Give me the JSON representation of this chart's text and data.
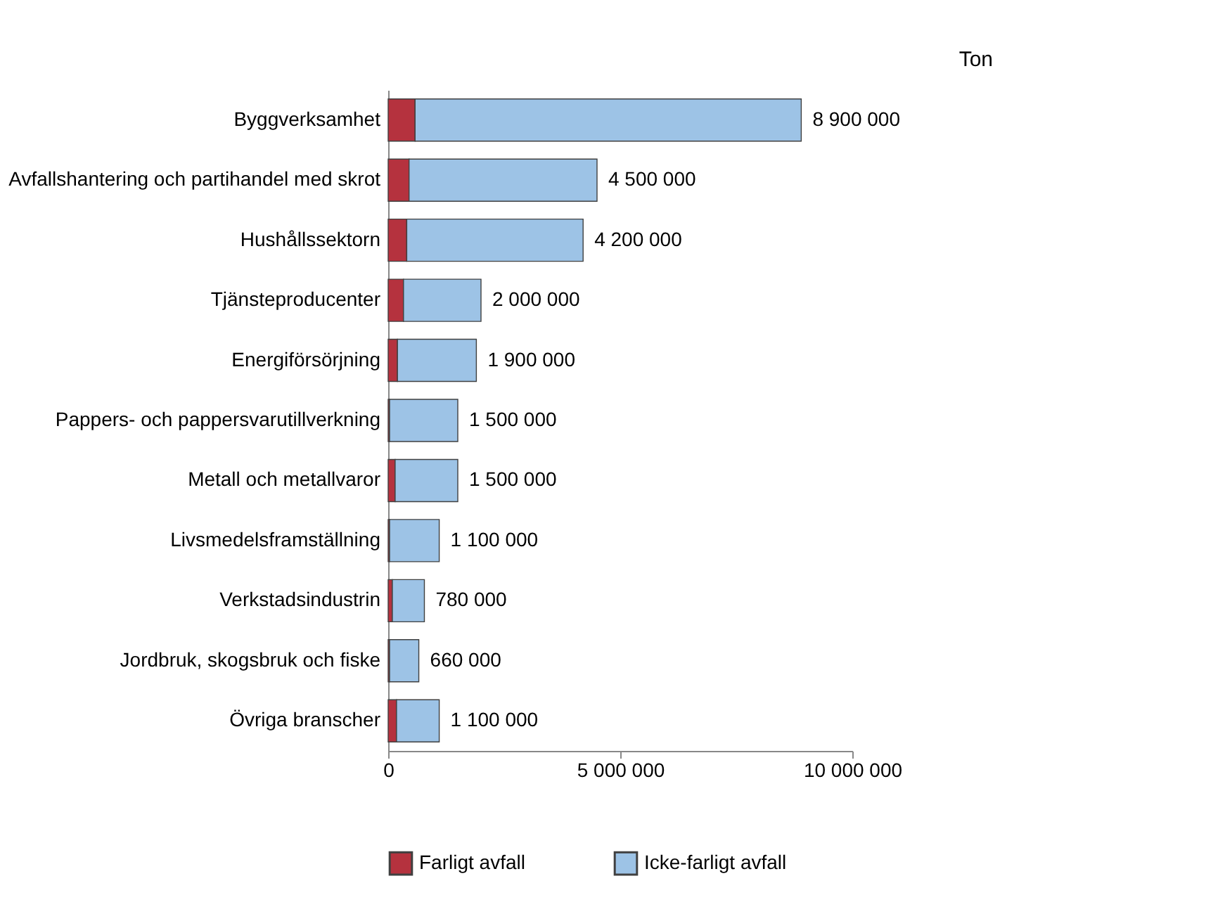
{
  "chart_data": {
    "type": "bar",
    "orientation": "horizontal",
    "stacked": true,
    "categories": [
      "Byggverksamhet",
      "Avfallshantering och partihandel med skrot",
      "Hushållssektorn",
      "Tjänsteproducenter",
      "Energiförsörjning",
      "Pappers- och pappersvarutillverkning",
      "Metall och metallvaror",
      "Livsmedelsframställning",
      "Verkstadsindustrin",
      "Jordbruk, skogsbruk och fiske",
      "Övriga branscher"
    ],
    "series": [
      {
        "name": "Farligt avfall",
        "color": "#b5323e",
        "values": [
          580000,
          450000,
          400000,
          330000,
          200000,
          30000,
          150000,
          30000,
          90000,
          30000,
          180000
        ]
      },
      {
        "name": "Icke-farligt avfall",
        "color": "#9dc3e6",
        "values": [
          8320000,
          4050000,
          3800000,
          1670000,
          1700000,
          1470000,
          1350000,
          1070000,
          690000,
          630000,
          920000
        ]
      }
    ],
    "totals": [
      "8 900 000",
      "4 500 000",
      "4 200 000",
      "2 000 000",
      "1 900 000",
      "1 500 000",
      "1 500 000",
      "1 100 000",
      "780 000",
      "660 000",
      "1 100 000"
    ],
    "xlim": [
      0,
      10000000
    ],
    "xticks": [
      {
        "value": 0,
        "label": "0"
      },
      {
        "value": 5000000,
        "label": "5 000 000"
      },
      {
        "value": 10000000,
        "label": "10 000 000"
      }
    ],
    "annotations": [
      "Ton"
    ],
    "grid": false,
    "legend": "bottom"
  }
}
